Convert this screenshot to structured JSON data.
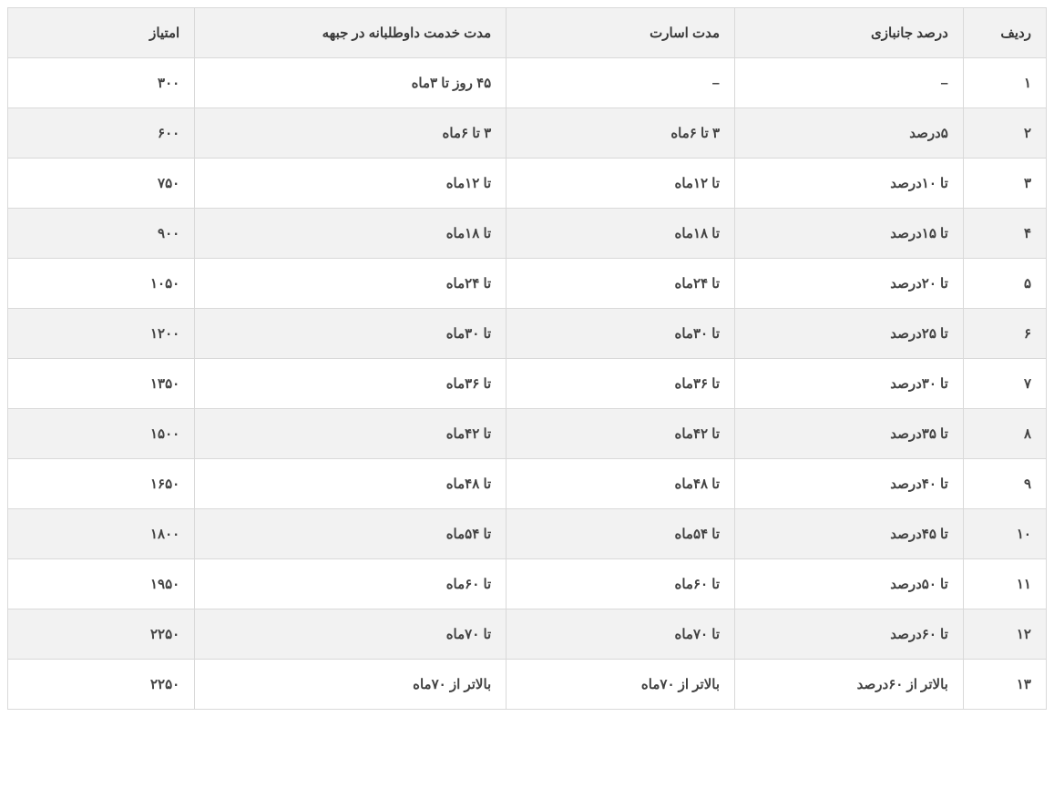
{
  "table": {
    "columns": [
      "ردیف",
      "درصد جانبازی",
      "مدت اسارت",
      "مدت خدمت داوطلبانه در جبهه",
      "امتیاز"
    ],
    "rows": [
      [
        "۱",
        "–",
        "–",
        "۴۵ روز تا ۳ماه",
        "۳۰۰"
      ],
      [
        "۲",
        "۵درصد",
        "۳ تا ۶ماه",
        "۳ تا ۶ماه",
        "۶۰۰"
      ],
      [
        "۳",
        "تا ۱۰درصد",
        "تا ۱۲ماه",
        "تا ۱۲ماه",
        "۷۵۰"
      ],
      [
        "۴",
        "تا ۱۵درصد",
        "تا ۱۸ماه",
        "تا ۱۸ماه",
        "۹۰۰"
      ],
      [
        "۵",
        "تا ۲۰درصد",
        "تا ۲۴ماه",
        "تا ۲۴ماه",
        "۱۰۵۰"
      ],
      [
        "۶",
        "تا ۲۵درصد",
        "تا ۳۰ماه",
        "تا ۳۰ماه",
        "۱۲۰۰"
      ],
      [
        "۷",
        "تا ۳۰درصد",
        "تا ۳۶ماه",
        "تا ۳۶ماه",
        "۱۳۵۰"
      ],
      [
        "۸",
        "تا ۳۵درصد",
        "تا ۴۲ماه",
        "تا ۴۲ماه",
        "۱۵۰۰"
      ],
      [
        "۹",
        "تا ۴۰درصد",
        "تا ۴۸ماه",
        "تا ۴۸ماه",
        "۱۶۵۰"
      ],
      [
        "۱۰",
        "تا ۴۵درصد",
        "تا ۵۴ماه",
        "تا ۵۴ماه",
        "۱۸۰۰"
      ],
      [
        "۱۱",
        "تا ۵۰درصد",
        "تا ۶۰ماه",
        "تا ۶۰ماه",
        "۱۹۵۰"
      ],
      [
        "۱۲",
        "تا ۶۰درصد",
        "تا ۷۰ماه",
        "تا ۷۰ماه",
        "۲۲۵۰"
      ],
      [
        "۱۳",
        "بالاتر از ۶۰درصد",
        "بالاتر از ۷۰ماه",
        "بالاتر از ۷۰ماه",
        "۲۲۵۰"
      ]
    ],
    "styling": {
      "header_bg": "#f2f2f2",
      "row_even_bg": "#f2f2f2",
      "row_odd_bg": "#ffffff",
      "border_color": "#d9d9d9",
      "text_color": "#424242",
      "font_size": 15,
      "cell_padding": "18px 16px",
      "direction": "rtl",
      "col_widths_pct": [
        8,
        22,
        22,
        30,
        18
      ]
    }
  }
}
